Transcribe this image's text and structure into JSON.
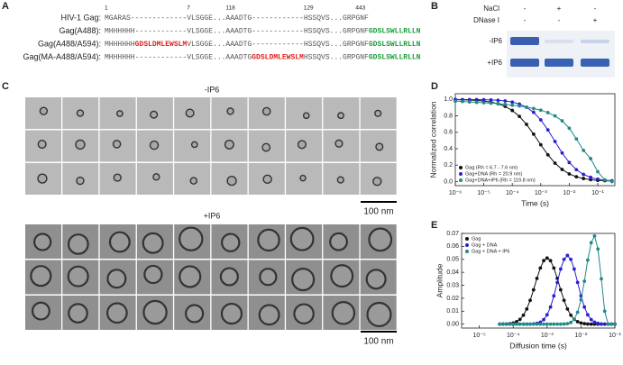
{
  "panel_labels": [
    "A",
    "B",
    "C",
    "D",
    "E"
  ],
  "sequence_panel": {
    "numbers": [
      "1",
      "7",
      "118",
      "129",
      "443"
    ],
    "rows": [
      {
        "label": "HIV-1 Gag:",
        "segments": [
          {
            "text": "MGARAS-------------VLSGGE...AAADTG------------HSSQVS...GRPGNF",
            "color": "#555555"
          }
        ]
      },
      {
        "label": "Gag(A488):",
        "segments": [
          {
            "text": "MHHHHHH------------VLSGGE...AAADTG------------HSSQVS...GRPGNF",
            "color": "#555555"
          },
          {
            "text": "GDSLSWLLRLLN",
            "color": "#1a9e3a"
          }
        ]
      },
      {
        "label": "Gag(A488/A594):",
        "segments": [
          {
            "text": "MHHHHHH",
            "color": "#555555"
          },
          {
            "text": "GDSLDMLEWSLM",
            "color": "#e02020"
          },
          {
            "text": "VLSGGE...AAADTG------------HSSQVS...GRPGNF",
            "color": "#555555"
          },
          {
            "text": "GDSLSWLLRLLN",
            "color": "#1a9e3a"
          }
        ]
      },
      {
        "label": "Gag(MA-A488/A594):",
        "segments": [
          {
            "text": "MHHHHHH------------VLSGGE...AAADTG",
            "color": "#555555"
          },
          {
            "text": "GDSLDMLEWSLM",
            "color": "#e02020"
          },
          {
            "text": "HSSQVS...GRPGNF",
            "color": "#555555"
          },
          {
            "text": "GDSLSWLLRLLN",
            "color": "#1a9e3a"
          }
        ]
      }
    ]
  },
  "gel_panel": {
    "conditions": [
      {
        "name": "NaCl",
        "signs": [
          "-",
          "+",
          "-"
        ]
      },
      {
        "name": "DNase I",
        "signs": [
          "-",
          "-",
          "+"
        ]
      }
    ],
    "rows": [
      "-IP6",
      "+IP6"
    ]
  },
  "em_panel": {
    "groups": [
      {
        "label": "-IP6",
        "scale_bar": "100 nm"
      },
      {
        "label": "+IP6",
        "scale_bar": "100 nm"
      }
    ]
  },
  "chart_data": [
    {
      "type": "line",
      "xscale": "log",
      "markers": true,
      "legend": "lower left",
      "x_label": "Time (s)",
      "y_label": "Normalized correlation",
      "xlim": [
        1e-06,
        0.4
      ],
      "ylim": [
        -0.05,
        1.07
      ],
      "xticks": [
        {
          "value": 1e-06,
          "label": "10⁻⁶"
        },
        {
          "value": 1e-05,
          "label": "10⁻⁵"
        },
        {
          "value": 0.0001,
          "label": "10⁻⁴"
        },
        {
          "value": 0.001,
          "label": "10⁻³"
        },
        {
          "value": 0.01,
          "label": "10⁻²"
        },
        {
          "value": 0.1,
          "label": "10⁻¹"
        }
      ],
      "yticks": [
        {
          "value": 0,
          "label": "0.0"
        },
        0.2,
        0.4,
        0.6,
        0.8,
        {
          "value": 1,
          "label": "1.0"
        }
      ],
      "x": [
        1e-06,
        1.78e-06,
        3.16e-06,
        5.62e-06,
        1e-05,
        1.78e-05,
        3.16e-05,
        5.62e-05,
        0.0001,
        0.000178,
        0.000316,
        0.000562,
        0.001,
        0.00178,
        0.00316,
        0.00562,
        0.01,
        0.0178,
        0.0316,
        0.0562,
        0.1,
        0.178,
        0.316
      ],
      "series": [
        {
          "name": "Gag (Rh = 6.7 - 7.6 nm)",
          "color": "#111111",
          "values": [
            0.998,
            0.996,
            0.993,
            0.989,
            0.981,
            0.968,
            0.948,
            0.916,
            0.866,
            0.794,
            0.696,
            0.577,
            0.448,
            0.326,
            0.224,
            0.147,
            0.093,
            0.058,
            0.037,
            0.023,
            0.014,
            0.01,
            0.006
          ]
        },
        {
          "name": "Gag+DNA (Rh = 20.9 nm)",
          "color": "#2a1fd0",
          "values": [
            1.0,
            0.999,
            0.999,
            0.998,
            0.997,
            0.994,
            0.99,
            0.982,
            0.968,
            0.944,
            0.905,
            0.843,
            0.751,
            0.629,
            0.488,
            0.349,
            0.232,
            0.145,
            0.087,
            0.051,
            0.029,
            0.017,
            0.01
          ]
        },
        {
          "name": "Gag+DNA+IP6 (Rh = 119.8 nm)",
          "color": "#1f8a86",
          "values": [
            0.98,
            0.975,
            0.97,
            0.965,
            0.96,
            0.955,
            0.95,
            0.94,
            0.93,
            0.92,
            0.905,
            0.89,
            0.87,
            0.84,
            0.8,
            0.74,
            0.65,
            0.52,
            0.38,
            0.28,
            0.12,
            0.02,
            0.0
          ]
        }
      ]
    },
    {
      "type": "line",
      "xscale": "log",
      "markers": true,
      "legend": "upper left",
      "x_label": "Diffusion time (s)",
      "y_label": "Amplitude",
      "xlim": [
        3e-06,
        0.1
      ],
      "ylim": [
        -0.003,
        0.07
      ],
      "xticks": [
        {
          "value": 1e-05,
          "label": "10⁻⁵"
        },
        {
          "value": 0.0001,
          "label": "10⁻⁴"
        },
        {
          "value": 0.001,
          "label": "10⁻³"
        },
        {
          "value": 0.01,
          "label": "10⁻²"
        },
        {
          "value": 0.1,
          "label": "10⁻¹"
        }
      ],
      "yticks": [
        {
          "value": 0,
          "label": "0.00"
        },
        0.01,
        0.02,
        0.03,
        0.04,
        0.05,
        0.06,
        0.07
      ],
      "x": [
        3.98e-05,
        5.01e-05,
        6.31e-05,
        7.94e-05,
        0.0001,
        0.000126,
        0.000158,
        0.0002,
        0.000251,
        0.000316,
        0.000398,
        0.000501,
        0.000631,
        0.000794,
        0.001,
        0.00126,
        0.00158,
        0.002,
        0.00251,
        0.00316,
        0.00398,
        0.00501,
        0.00631,
        0.00794,
        0.01,
        0.0126,
        0.0158,
        0.02,
        0.0251,
        0.0316,
        0.0398,
        0.0501,
        0.0631,
        0.0794,
        0.1
      ],
      "series": [
        {
          "name": "Gag",
          "color": "#111111",
          "values": [
            0,
            0.0001,
            0.0001,
            0.0004,
            0.0009,
            0.0019,
            0.0037,
            0.0069,
            0.0117,
            0.0184,
            0.0265,
            0.0353,
            0.0433,
            0.049,
            0.051,
            0.049,
            0.0433,
            0.0353,
            0.0265,
            0.0184,
            0.0117,
            0.0069,
            0.0037,
            0.0019,
            0.0009,
            0.0004,
            0.0001,
            0,
            0,
            0,
            0,
            0,
            0,
            0,
            0
          ]
        },
        {
          "name": "Gag + DNA",
          "color": "#2a1fd0",
          "values": [
            0,
            0,
            0,
            0,
            0,
            0,
            0,
            0,
            0,
            0,
            0.0002,
            0.0006,
            0.0015,
            0.0035,
            0.0072,
            0.0132,
            0.0218,
            0.0322,
            0.0425,
            0.05,
            0.053,
            0.05,
            0.0425,
            0.0322,
            0.0218,
            0.0132,
            0.0072,
            0.0035,
            0.0015,
            0.0006,
            0.0002,
            0,
            0,
            0,
            0
          ]
        },
        {
          "name": "Gag + DNA + IP6",
          "color": "#1f8a86",
          "values": [
            0,
            0,
            0,
            0,
            0,
            0,
            0,
            0,
            0,
            0,
            0,
            0,
            0,
            0,
            0,
            0,
            0,
            0,
            0,
            0.0001,
            0.0004,
            0.0013,
            0.0038,
            0.0092,
            0.0189,
            0.0331,
            0.0494,
            0.0628,
            0.068,
            0.058,
            0.035,
            0.01,
            0,
            0,
            0
          ]
        }
      ]
    }
  ]
}
